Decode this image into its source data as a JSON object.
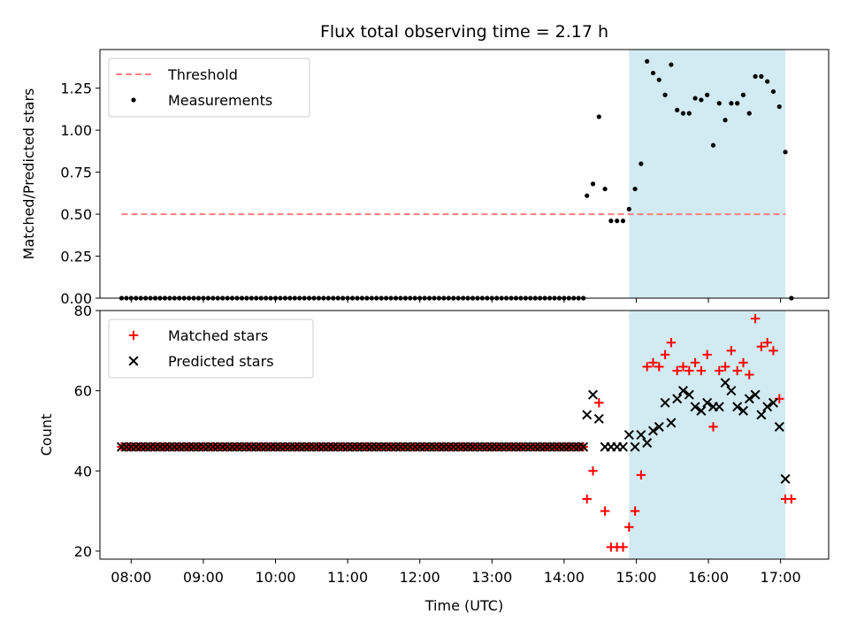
{
  "chart_data": {
    "type": "scatter",
    "title": "Flux total observing time = 2.17 h",
    "xlabel": "Time (UTC)",
    "x_unit": "hours UTC",
    "xlim": [
      "07:34",
      "17:40"
    ],
    "x_ticks": [
      {
        "t": "08:00",
        "label": "08:00"
      },
      {
        "t": "09:00",
        "label": "09:00"
      },
      {
        "t": "10:00",
        "label": "10:00"
      },
      {
        "t": "11:00",
        "label": "11:00"
      },
      {
        "t": "12:00",
        "label": "12:00"
      },
      {
        "t": "13:00",
        "label": "13:00"
      },
      {
        "t": "14:00",
        "label": "14:00"
      },
      {
        "t": "15:00",
        "label": "15:00"
      },
      {
        "t": "16:00",
        "label": "16:00"
      },
      {
        "t": "17:00",
        "label": "17:00"
      }
    ],
    "shaded_region": {
      "start": "14:54",
      "end": "17:04",
      "color": "#add8e6"
    },
    "colors": {
      "threshold": "#ff7f7f",
      "measurements": "#000000",
      "matched": "#ff0000",
      "predicted": "#000000"
    },
    "panels": [
      {
        "ylabel": "Matched/Predicted stars",
        "ylim": [
          0,
          1.48
        ],
        "y_ticks": [
          {
            "v": 0,
            "label": "0.00"
          },
          {
            "v": 0.25,
            "label": "0.25"
          },
          {
            "v": 0.5,
            "label": "0.50"
          },
          {
            "v": 0.75,
            "label": "0.75"
          },
          {
            "v": 1.0,
            "label": "1.00"
          },
          {
            "v": 1.25,
            "label": "1.25"
          }
        ],
        "legend": {
          "position": "upper-left",
          "entries": [
            "Threshold",
            "Measurements"
          ]
        },
        "threshold": {
          "name": "Threshold",
          "y": 0.5,
          "x_range": [
            "07:52",
            "17:04"
          ]
        },
        "series": [
          {
            "name": "Measurements",
            "marker": "dot",
            "baseline": {
              "y": 0,
              "start": "07:52",
              "end": "14:16",
              "step_minutes": 4
            },
            "points": [
              [
                "14:19",
                0.61
              ],
              [
                "14:24",
                0.68
              ],
              [
                "14:29",
                1.08
              ],
              [
                "14:34",
                0.65
              ],
              [
                "14:39",
                0.46
              ],
              [
                "14:44",
                0.46
              ],
              [
                "14:49",
                0.46
              ],
              [
                "14:54",
                0.53
              ],
              [
                "14:59",
                0.65
              ],
              [
                "15:04",
                0.8
              ],
              [
                "15:09",
                1.41
              ],
              [
                "15:14",
                1.34
              ],
              [
                "15:19",
                1.3
              ],
              [
                "15:24",
                1.21
              ],
              [
                "15:29",
                1.39
              ],
              [
                "15:34",
                1.12
              ],
              [
                "15:39",
                1.1
              ],
              [
                "15:44",
                1.1
              ],
              [
                "15:49",
                1.19
              ],
              [
                "15:54",
                1.18
              ],
              [
                "15:59",
                1.21
              ],
              [
                "16:04",
                0.91
              ],
              [
                "16:09",
                1.16
              ],
              [
                "16:14",
                1.06
              ],
              [
                "16:19",
                1.16
              ],
              [
                "16:24",
                1.16
              ],
              [
                "16:29",
                1.21
              ],
              [
                "16:34",
                1.1
              ],
              [
                "16:39",
                1.32
              ],
              [
                "16:44",
                1.32
              ],
              [
                "16:49",
                1.29
              ],
              [
                "16:54",
                1.23
              ],
              [
                "16:59",
                1.14
              ],
              [
                "17:04",
                0.87
              ],
              [
                "17:09",
                0.0
              ]
            ]
          }
        ]
      },
      {
        "ylabel": "Count",
        "ylim": [
          18,
          80
        ],
        "y_ticks": [
          {
            "v": 20,
            "label": "20"
          },
          {
            "v": 40,
            "label": "40"
          },
          {
            "v": 60,
            "label": "60"
          },
          {
            "v": 80,
            "label": "80"
          }
        ],
        "legend": {
          "position": "upper-left",
          "entries": [
            "Matched stars",
            "Predicted stars"
          ]
        },
        "series": [
          {
            "name": "Matched stars",
            "marker": "plus",
            "baseline": {
              "y": 46,
              "start": "07:52",
              "end": "14:16",
              "step_minutes": 4
            },
            "points": [
              [
                "14:19",
                33
              ],
              [
                "14:24",
                40
              ],
              [
                "14:29",
                57
              ],
              [
                "14:34",
                30
              ],
              [
                "14:39",
                21
              ],
              [
                "14:44",
                21
              ],
              [
                "14:49",
                21
              ],
              [
                "14:54",
                26
              ],
              [
                "14:59",
                30
              ],
              [
                "15:04",
                39
              ],
              [
                "15:09",
                66
              ],
              [
                "15:14",
                67
              ],
              [
                "15:19",
                66
              ],
              [
                "15:24",
                69
              ],
              [
                "15:29",
                72
              ],
              [
                "15:34",
                65
              ],
              [
                "15:39",
                66
              ],
              [
                "15:44",
                65
              ],
              [
                "15:49",
                67
              ],
              [
                "15:54",
                65
              ],
              [
                "15:59",
                69
              ],
              [
                "16:04",
                51
              ],
              [
                "16:09",
                65
              ],
              [
                "16:14",
                66
              ],
              [
                "16:19",
                70
              ],
              [
                "16:24",
                65
              ],
              [
                "16:29",
                67
              ],
              [
                "16:34",
                64
              ],
              [
                "16:39",
                78
              ],
              [
                "16:44",
                71
              ],
              [
                "16:49",
                72
              ],
              [
                "16:54",
                70
              ],
              [
                "16:59",
                58
              ],
              [
                "17:04",
                33
              ],
              [
                "17:09",
                33
              ]
            ]
          },
          {
            "name": "Predicted stars",
            "marker": "x",
            "baseline": {
              "y": 46,
              "start": "07:52",
              "end": "14:16",
              "step_minutes": 4
            },
            "points": [
              [
                "14:19",
                54
              ],
              [
                "14:24",
                59
              ],
              [
                "14:29",
                53
              ],
              [
                "14:34",
                46
              ],
              [
                "14:39",
                46
              ],
              [
                "14:44",
                46
              ],
              [
                "14:49",
                46
              ],
              [
                "14:54",
                49
              ],
              [
                "14:59",
                46
              ],
              [
                "15:04",
                49
              ],
              [
                "15:09",
                47
              ],
              [
                "15:14",
                50
              ],
              [
                "15:19",
                51
              ],
              [
                "15:24",
                57
              ],
              [
                "15:29",
                52
              ],
              [
                "15:34",
                58
              ],
              [
                "15:39",
                60
              ],
              [
                "15:44",
                59
              ],
              [
                "15:49",
                56
              ],
              [
                "15:54",
                55
              ],
              [
                "15:59",
                57
              ],
              [
                "16:04",
                56
              ],
              [
                "16:09",
                56
              ],
              [
                "16:14",
                62
              ],
              [
                "16:19",
                60
              ],
              [
                "16:24",
                56
              ],
              [
                "16:29",
                55
              ],
              [
                "16:34",
                58
              ],
              [
                "16:39",
                59
              ],
              [
                "16:44",
                54
              ],
              [
                "16:49",
                56
              ],
              [
                "16:54",
                57
              ],
              [
                "16:59",
                51
              ],
              [
                "17:04",
                38
              ]
            ]
          }
        ]
      }
    ]
  }
}
